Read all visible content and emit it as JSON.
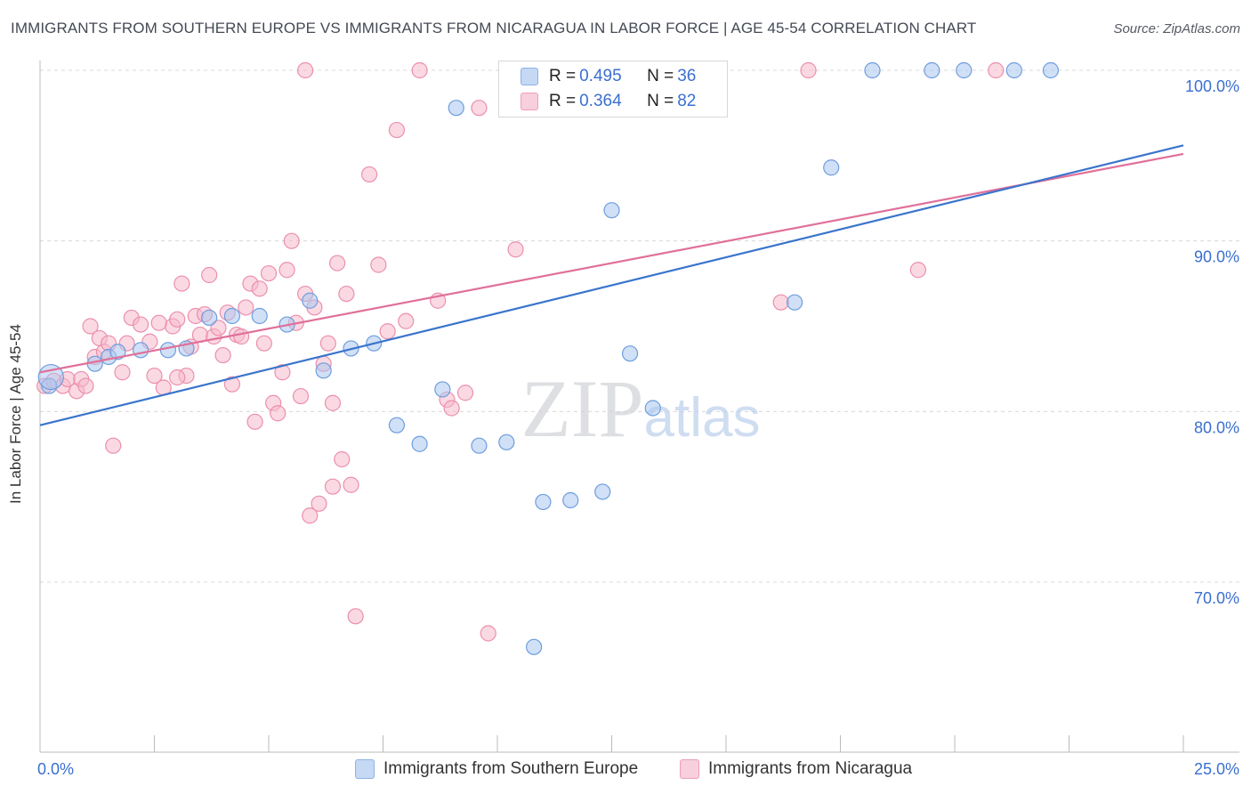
{
  "title": "IMMIGRANTS FROM SOUTHERN EUROPE VS IMMIGRANTS FROM NICARAGUA IN LABOR FORCE | AGE 45-54 CORRELATION CHART",
  "source": "Source: ZipAtlas.com",
  "legend": {
    "rows": [
      {
        "r_label": "R = ",
        "r_value": "0.495",
        "n_label": "N = ",
        "n_value": "36"
      },
      {
        "r_label": "R = ",
        "r_value": "0.364",
        "n_label": "N = ",
        "n_value": "82"
      }
    ]
  },
  "bottom_legend": {
    "series1": "Immigrants from Southern Europe",
    "series2": "Immigrants from Nicaragua"
  },
  "colors": {
    "blue_fill": "#a9c6ef",
    "blue_stroke": "#6e9ddf",
    "blue_line": "#3a74cc",
    "pink_fill": "#f5b9cc",
    "pink_stroke": "#ec8fad",
    "pink_line": "#e0709a",
    "tick_label": "#3a6fd0",
    "grid": "#d8d8d8"
  },
  "chart_data": {
    "type": "scatter",
    "xlabel": "",
    "ylabel": "In Labor Force | Age 45-54",
    "xlim": [
      0,
      25
    ],
    "ylim": [
      60,
      100
    ],
    "x_tick_labels": [
      {
        "value": 0,
        "label": "0.0%"
      },
      {
        "value": 25,
        "label": "25.0%"
      }
    ],
    "y_tick_labels": [
      {
        "value": 70,
        "label": "70.0%"
      },
      {
        "value": 80,
        "label": "80.0%"
      },
      {
        "value": 90,
        "label": "90.0%"
      },
      {
        "value": 100,
        "label": "100.0%"
      }
    ],
    "grid": true,
    "watermark": "ZIPatlas",
    "series": [
      {
        "name": "Immigrants from Southern Europe",
        "r": 0.495,
        "n": 36,
        "trend": {
          "x": [
            0,
            25
          ],
          "y": [
            79.2,
            95.6
          ]
        },
        "points": [
          [
            0.2,
            81.5
          ],
          [
            1.2,
            82.8
          ],
          [
            1.5,
            83.2
          ],
          [
            1.7,
            83.5
          ],
          [
            2.2,
            83.6
          ],
          [
            2.8,
            83.6
          ],
          [
            3.2,
            83.7
          ],
          [
            3.7,
            85.5
          ],
          [
            4.2,
            85.6
          ],
          [
            4.8,
            85.6
          ],
          [
            5.4,
            85.1
          ],
          [
            5.9,
            86.5
          ],
          [
            6.2,
            82.4
          ],
          [
            6.8,
            83.7
          ],
          [
            7.3,
            84.0
          ],
          [
            7.8,
            79.2
          ],
          [
            8.3,
            78.1
          ],
          [
            8.8,
            81.3
          ],
          [
            9.1,
            97.8
          ],
          [
            9.6,
            78.0
          ],
          [
            10.2,
            78.2
          ],
          [
            10.8,
            66.2
          ],
          [
            11.0,
            74.7
          ],
          [
            11.6,
            74.8
          ],
          [
            12.3,
            75.3
          ],
          [
            12.9,
            83.4
          ],
          [
            13.4,
            80.2
          ],
          [
            12.5,
            91.8
          ],
          [
            14.2,
            100.0
          ],
          [
            16.5,
            86.4
          ],
          [
            17.3,
            94.3
          ],
          [
            18.2,
            100.0
          ],
          [
            19.5,
            100.0
          ],
          [
            20.2,
            100.0
          ],
          [
            21.3,
            100.0
          ],
          [
            22.1,
            100.0
          ]
        ]
      },
      {
        "name": "Immigrants from Nicaragua",
        "r": 0.364,
        "n": 82,
        "trend": {
          "x": [
            0,
            25
          ],
          "y": [
            82.3,
            95.1
          ]
        },
        "points": [
          [
            0.1,
            81.5
          ],
          [
            0.3,
            81.8
          ],
          [
            0.5,
            81.5
          ],
          [
            0.6,
            81.9
          ],
          [
            0.8,
            81.2
          ],
          [
            0.9,
            81.9
          ],
          [
            1.0,
            81.5
          ],
          [
            1.1,
            85.0
          ],
          [
            1.2,
            83.2
          ],
          [
            1.3,
            84.3
          ],
          [
            1.4,
            83.5
          ],
          [
            1.5,
            84.0
          ],
          [
            1.6,
            78.0
          ],
          [
            1.8,
            82.3
          ],
          [
            2.0,
            85.5
          ],
          [
            2.2,
            85.1
          ],
          [
            2.4,
            84.1
          ],
          [
            2.5,
            82.1
          ],
          [
            2.7,
            81.4
          ],
          [
            2.9,
            85.0
          ],
          [
            3.0,
            85.4
          ],
          [
            3.1,
            87.5
          ],
          [
            3.2,
            82.1
          ],
          [
            3.4,
            85.6
          ],
          [
            3.5,
            84.5
          ],
          [
            3.6,
            85.7
          ],
          [
            3.7,
            88.0
          ],
          [
            3.8,
            84.4
          ],
          [
            3.9,
            84.9
          ],
          [
            4.0,
            83.3
          ],
          [
            4.1,
            85.8
          ],
          [
            4.2,
            81.6
          ],
          [
            4.3,
            84.5
          ],
          [
            4.4,
            84.4
          ],
          [
            4.5,
            86.1
          ],
          [
            4.6,
            87.5
          ],
          [
            4.7,
            79.4
          ],
          [
            4.8,
            87.2
          ],
          [
            5.0,
            88.1
          ],
          [
            5.1,
            80.5
          ],
          [
            5.2,
            79.9
          ],
          [
            5.3,
            82.3
          ],
          [
            5.4,
            88.3
          ],
          [
            5.5,
            90.0
          ],
          [
            5.6,
            85.2
          ],
          [
            5.7,
            80.9
          ],
          [
            5.8,
            86.9
          ],
          [
            5.9,
            73.9
          ],
          [
            6.0,
            86.1
          ],
          [
            6.1,
            74.6
          ],
          [
            6.2,
            82.8
          ],
          [
            6.3,
            84.0
          ],
          [
            6.4,
            75.6
          ],
          [
            6.5,
            88.7
          ],
          [
            6.6,
            77.2
          ],
          [
            6.7,
            86.9
          ],
          [
            6.8,
            75.7
          ],
          [
            6.9,
            68.0
          ],
          [
            7.2,
            93.9
          ],
          [
            7.4,
            88.6
          ],
          [
            7.6,
            84.7
          ],
          [
            7.8,
            96.5
          ],
          [
            8.0,
            85.3
          ],
          [
            8.3,
            100.0
          ],
          [
            8.7,
            86.5
          ],
          [
            8.9,
            80.7
          ],
          [
            9.0,
            80.2
          ],
          [
            9.3,
            81.1
          ],
          [
            9.6,
            97.8
          ],
          [
            9.8,
            67.0
          ],
          [
            10.4,
            89.5
          ],
          [
            5.8,
            100.0
          ],
          [
            16.2,
            86.4
          ],
          [
            16.8,
            100.0
          ],
          [
            19.2,
            88.3
          ],
          [
            20.9,
            100.0
          ],
          [
            1.9,
            84.0
          ],
          [
            2.6,
            85.2
          ],
          [
            3.3,
            83.8
          ],
          [
            4.9,
            84.0
          ],
          [
            6.4,
            80.5
          ],
          [
            3.0,
            82.0
          ]
        ]
      }
    ]
  }
}
